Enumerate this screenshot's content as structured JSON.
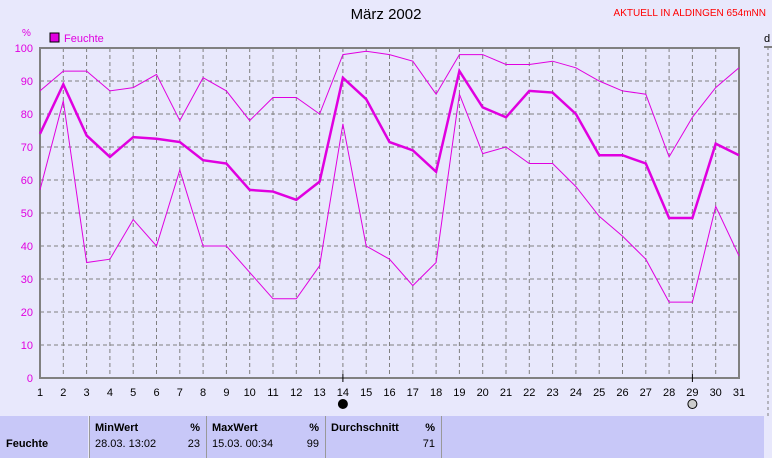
{
  "title": "März 2002",
  "status": "AKTUELL IN ALDINGEN 654mNN",
  "chart_data": {
    "type": "line",
    "title": "März 2002",
    "ylabel": "%",
    "ylim": [
      0,
      100
    ],
    "yticks": [
      0,
      10,
      20,
      30,
      40,
      50,
      60,
      70,
      80,
      90,
      100
    ],
    "x": [
      1,
      2,
      3,
      4,
      5,
      6,
      7,
      8,
      9,
      10,
      11,
      12,
      13,
      14,
      15,
      16,
      17,
      18,
      19,
      20,
      21,
      22,
      23,
      24,
      25,
      26,
      27,
      28,
      29,
      30,
      31
    ],
    "grid": true,
    "legend": {
      "label": "Feuchte",
      "placement": "top-left"
    },
    "color": "#e000e0",
    "series": [
      {
        "values": [
          87,
          93,
          93,
          87,
          88,
          92,
          78,
          91,
          87,
          78,
          85,
          85,
          80,
          98,
          99,
          98,
          96,
          86,
          98,
          98,
          95,
          95,
          96,
          94,
          90,
          87,
          86,
          67,
          79,
          88,
          94
        ]
      },
      {
        "values": [
          74,
          89,
          73.5,
          67,
          73,
          72.5,
          71.5,
          66,
          65,
          57,
          56.5,
          54,
          59.5,
          91,
          84.5,
          71.5,
          69,
          62.5,
          93,
          82,
          79,
          87,
          86.5,
          80,
          67.5,
          67.5,
          65,
          48.5,
          48.5,
          71,
          67.5
        ]
      },
      {
        "values": [
          57,
          84,
          35,
          36,
          48,
          40,
          63,
          40,
          40,
          32,
          24,
          24,
          34,
          77,
          40,
          36,
          28,
          35,
          86,
          68,
          70,
          65,
          65,
          58,
          49,
          43,
          36,
          23,
          23,
          52,
          37
        ]
      }
    ],
    "moon_markers": [
      {
        "day": 14,
        "phase": "new-moon"
      },
      {
        "day": 29,
        "phase": "full-moon"
      }
    ],
    "right_axis_label": "d"
  },
  "table": {
    "row_label": "Feuchte",
    "min": {
      "header": "MinWert",
      "unit": "%",
      "time": "28.03.  13:02",
      "value": "23"
    },
    "max": {
      "header": "MaxWert",
      "unit": "%",
      "time": "15.03.  00:34",
      "value": "99"
    },
    "avg": {
      "header": "Durchschnitt",
      "unit": "%",
      "value": "71"
    }
  }
}
